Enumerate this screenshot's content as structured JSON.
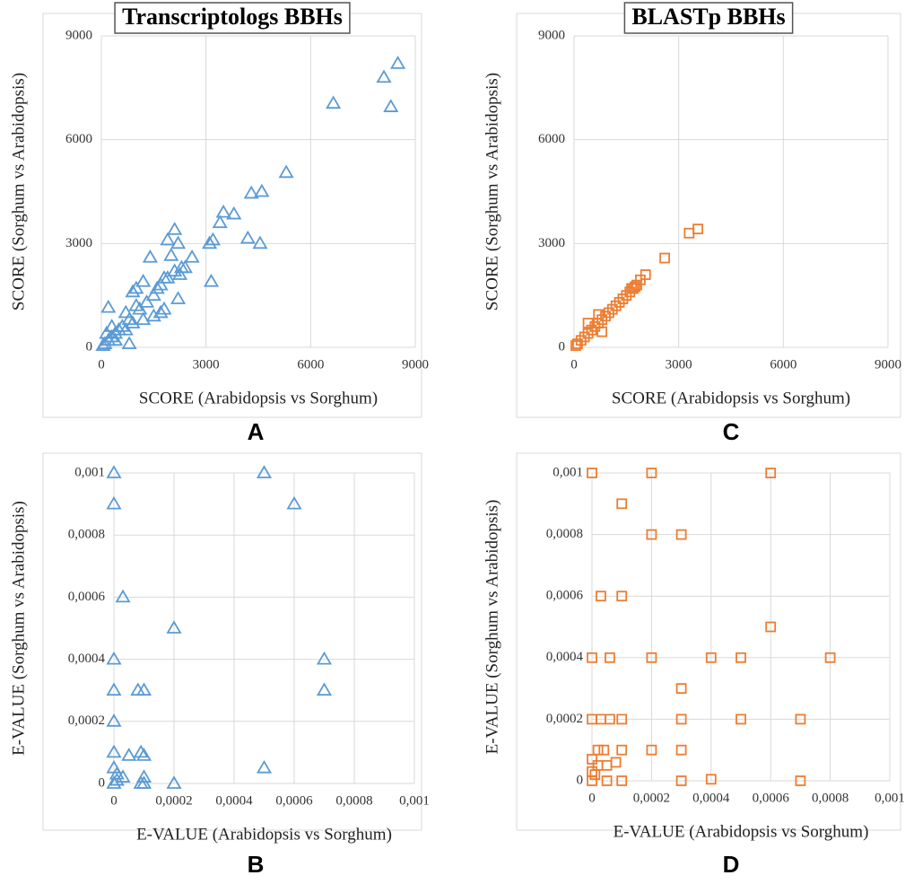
{
  "chart_data": [
    {
      "type": "scatter",
      "title": "Transcriptologs BBHs",
      "panel_label": "A",
      "x_label": "SCORE (Arabidopsis vs Sorghum)",
      "y_label": "SCORE (Sorghum vs Arabidopsis)",
      "xlim": [
        0,
        9000
      ],
      "ylim": [
        0,
        9000
      ],
      "xticks": [
        0,
        3000,
        6000,
        9000
      ],
      "yticks": [
        0,
        3000,
        6000,
        9000
      ],
      "grid": true,
      "series": [
        {
          "color": "#5b9bd5",
          "marker": "triangle",
          "x": [
            8500,
            8100,
            8300,
            6650,
            5300,
            4600,
            4300,
            4550,
            4200,
            3800,
            3500,
            3400,
            3200,
            3100,
            3150,
            2600,
            2300,
            2200,
            2100,
            1900,
            2000,
            2200,
            1800,
            1600,
            1500,
            1400,
            1300,
            1200,
            1100,
            1000,
            900,
            800,
            700,
            600,
            500,
            400,
            300,
            200,
            200,
            100,
            150,
            50,
            800,
            1000,
            1700,
            1900,
            2100,
            1500,
            1700,
            1800,
            1200,
            900,
            700,
            400,
            300,
            2400,
            2250
          ],
          "y": [
            8200,
            7800,
            6950,
            7050,
            5050,
            4500,
            4450,
            3000,
            3150,
            3850,
            3900,
            3600,
            3100,
            3000,
            1900,
            2600,
            2300,
            3000,
            3400,
            3100,
            2650,
            1400,
            2000,
            1700,
            1500,
            2600,
            1300,
            1900,
            1100,
            1700,
            1600,
            800,
            1000,
            600,
            500,
            400,
            300,
            1150,
            200,
            100,
            400,
            50,
            100,
            1200,
            1800,
            2000,
            2200,
            900,
            1000,
            1100,
            800,
            700,
            500,
            200,
            600,
            2300,
            2100
          ]
        }
      ]
    },
    {
      "type": "scatter",
      "panel_label": "B",
      "x_label": "E-VALUE (Arabidopsis vs Sorghum)",
      "y_label": "E-VALUE (Sorghum vs Arabidopsis)",
      "xlim": [
        0,
        0.001
      ],
      "ylim": [
        0,
        0.001
      ],
      "xticks": [
        0,
        {
          "value": 0.0002,
          "label": "0,0002"
        },
        {
          "value": 0.0004,
          "label": "0,0004"
        },
        {
          "value": 0.0006,
          "label": "0,0006"
        },
        {
          "value": 0.0008,
          "label": "0,0008"
        },
        {
          "value": 0.001,
          "label": "0,001"
        }
      ],
      "yticks": [
        0,
        {
          "value": 0.0002,
          "label": "0,0002"
        },
        {
          "value": 0.0004,
          "label": "0,0004"
        },
        {
          "value": 0.0006,
          "label": "0,0006"
        },
        {
          "value": 0.0008,
          "label": "0,0008"
        },
        {
          "value": 0.001,
          "label": "0,001"
        }
      ],
      "grid": true,
      "series": [
        {
          "color": "#5b9bd5",
          "marker": "triangle",
          "x": [
            0,
            0,
            3e-05,
            0.0002,
            0,
            0,
            0,
            8e-05,
            0.0001,
            0,
            9e-05,
            0.0001,
            5e-05,
            0.0005,
            0.0006,
            0.0007,
            0.0007,
            0.0005,
            0.0002,
            0,
            1e-05,
            3e-05,
            0.0001,
            0,
            1e-05,
            9e-05,
            0.0001
          ],
          "y": [
            0.001,
            0.0009,
            0.0006,
            0.0005,
            0.0004,
            0.0003,
            0.0002,
            0.0003,
            0.0003,
            0.0001,
            0.0001,
            9e-05,
            9e-05,
            0.001,
            0.0009,
            0.0004,
            0.0003,
            5e-05,
            0,
            5e-05,
            3e-05,
            2e-05,
            2e-05,
            0,
            1e-05,
            0,
            0
          ]
        }
      ]
    },
    {
      "type": "scatter",
      "title": "BLASTp BBHs",
      "panel_label": "C",
      "x_label": "SCORE (Arabidopsis vs Sorghum)",
      "y_label": "SCORE (Sorghum vs Arabidopsis)",
      "xlim": [
        0,
        9000
      ],
      "ylim": [
        0,
        9000
      ],
      "xticks": [
        0,
        3000,
        6000,
        9000
      ],
      "yticks": [
        0,
        3000,
        6000,
        9000
      ],
      "grid": true,
      "series": [
        {
          "color": "#ed7d31",
          "marker": "square",
          "x": [
            3550,
            3300,
            2600,
            2050,
            1900,
            1800,
            1700,
            1600,
            1500,
            1400,
            1300,
            1200,
            1100,
            1000,
            900,
            800,
            700,
            700,
            600,
            500,
            400,
            300,
            200,
            100,
            50,
            800,
            400,
            1650,
            1750
          ],
          "y": [
            3420,
            3300,
            2580,
            2100,
            1950,
            1800,
            1700,
            1600,
            1500,
            1400,
            1300,
            1200,
            1100,
            1000,
            900,
            800,
            950,
            700,
            600,
            500,
            400,
            300,
            200,
            100,
            50,
            450,
            700,
            1700,
            1750
          ]
        }
      ]
    },
    {
      "type": "scatter",
      "panel_label": "D",
      "x_label": "E-VALUE (Arabidopsis vs Sorghum)",
      "y_label": "E-VALUE (Sorghum vs Arabidopsis)",
      "xlim": [
        0,
        0.001
      ],
      "ylim": [
        0,
        0.001
      ],
      "xticks": [
        0,
        {
          "value": 0.0002,
          "label": "0,0002"
        },
        {
          "value": 0.0004,
          "label": "0,0004"
        },
        {
          "value": 0.0006,
          "label": "0,0006"
        },
        {
          "value": 0.0008,
          "label": "0,0008"
        },
        {
          "value": 0.001,
          "label": "0,001"
        }
      ],
      "yticks": [
        0,
        {
          "value": 0.0002,
          "label": "0,0002"
        },
        {
          "value": 0.0004,
          "label": "0,0004"
        },
        {
          "value": 0.0006,
          "label": "0,0006"
        },
        {
          "value": 0.0008,
          "label": "0,0008"
        },
        {
          "value": 0.001,
          "label": "0,001"
        }
      ],
      "grid": true,
      "series": [
        {
          "color": "#ed7d31",
          "marker": "square",
          "x": [
            0,
            0.0002,
            0.0006,
            0.0001,
            0.0002,
            0.0003,
            3e-05,
            0.0001,
            0.0006,
            0,
            6e-05,
            0.0002,
            0.0004,
            0.0005,
            0.0008,
            0.0003,
            0,
            3e-05,
            6e-05,
            0.0001,
            0.0003,
            0.0005,
            0.0007,
            2e-05,
            4e-05,
            0.0001,
            0.0002,
            0.0003,
            0,
            2e-05,
            5e-05,
            8e-05,
            0,
            1e-05,
            0,
            5e-05,
            0.0001,
            0.0003,
            0.0004,
            0.0007
          ],
          "y": [
            0.001,
            0.001,
            0.001,
            0.0009,
            0.0008,
            0.0008,
            0.0006,
            0.0006,
            0.0005,
            0.0004,
            0.0004,
            0.0004,
            0.0004,
            0.0004,
            0.0004,
            0.0003,
            0.0002,
            0.0002,
            0.0002,
            0.0002,
            0.0002,
            0.0002,
            0.0002,
            0.0001,
            0.0001,
            0.0001,
            0.0001,
            0.0001,
            7e-05,
            5e-05,
            5e-05,
            6e-05,
            3e-05,
            2e-05,
            0,
            0,
            0,
            0,
            5e-06,
            0
          ]
        }
      ]
    }
  ]
}
